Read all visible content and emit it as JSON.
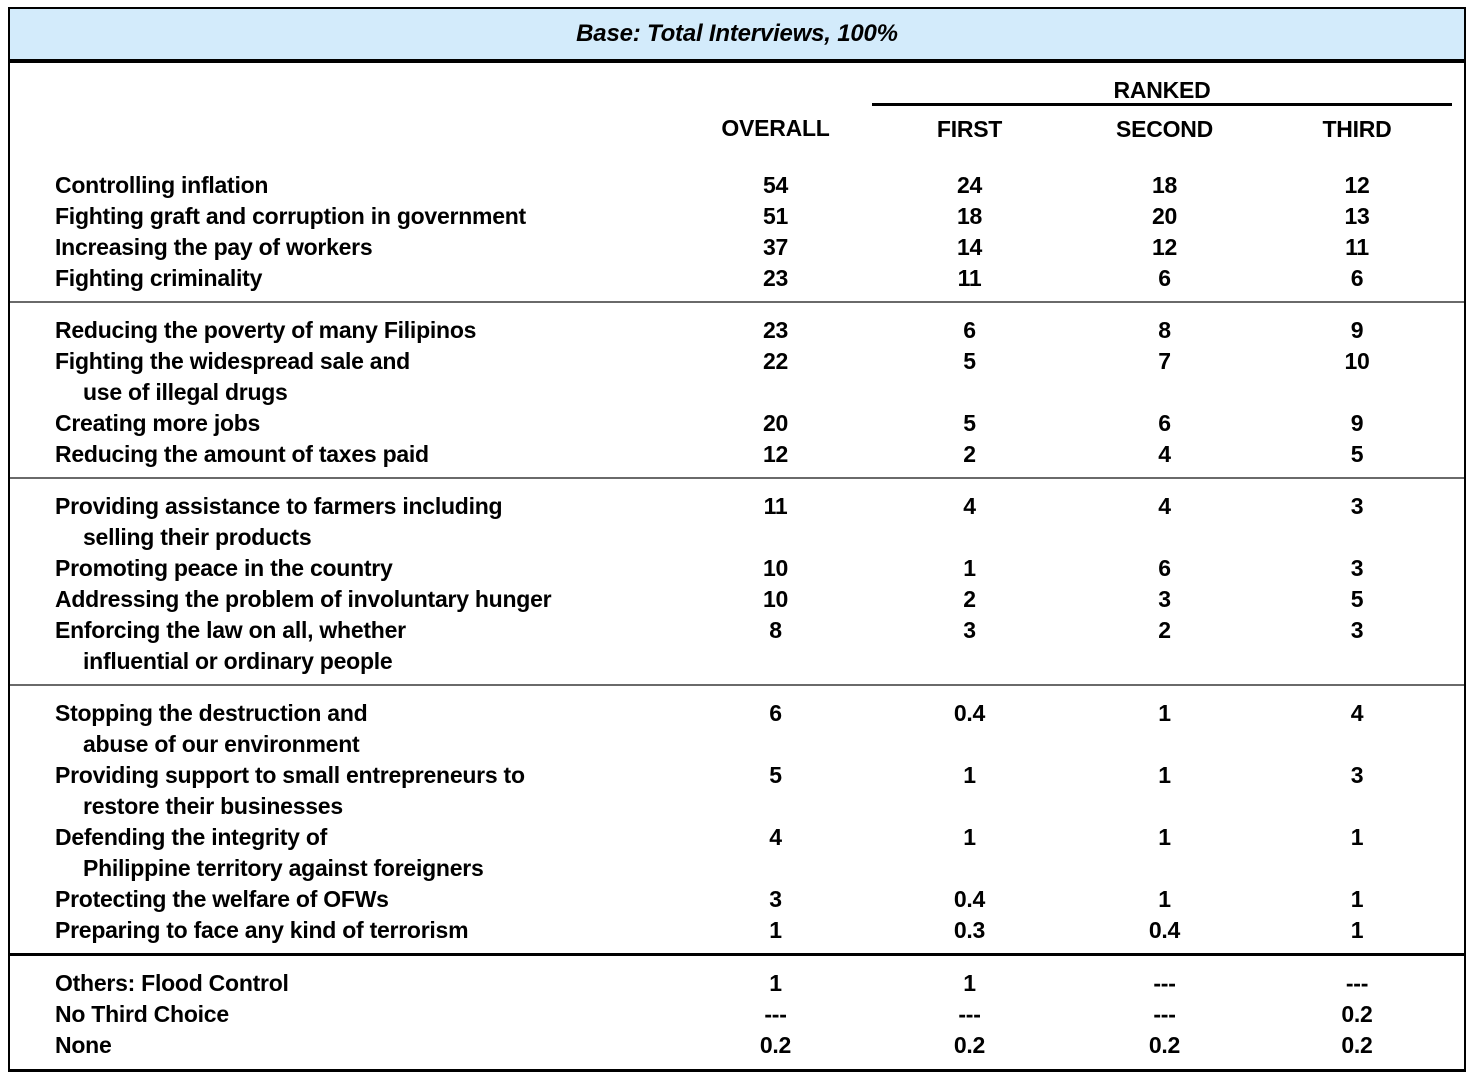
{
  "title_bar": {
    "text": "Base: Total Interviews, 100%"
  },
  "colors": {
    "title_bar_bg": "#d3ebfb",
    "border": "#000000",
    "group_divider": "#6a6a6a",
    "text": "#000000"
  },
  "table": {
    "column_headers": {
      "ranked_group": "RANKED",
      "overall": "OVERALL",
      "first": "FIRST",
      "second": "SECOND",
      "third": "THIRD"
    },
    "groups": [
      {
        "rows": [
          {
            "label_lines": [
              "Controlling inflation"
            ],
            "values": [
              "54",
              "24",
              "18",
              "12"
            ]
          },
          {
            "label_lines": [
              "Fighting graft and corruption in government"
            ],
            "values": [
              "51",
              "18",
              "20",
              "13"
            ]
          },
          {
            "label_lines": [
              "Increasing the pay of workers"
            ],
            "values": [
              "37",
              "14",
              "12",
              "11"
            ]
          },
          {
            "label_lines": [
              "Fighting criminality"
            ],
            "values": [
              "23",
              "11",
              "6",
              "6"
            ]
          }
        ]
      },
      {
        "rows": [
          {
            "label_lines": [
              "Reducing the poverty of many Filipinos"
            ],
            "values": [
              "23",
              "6",
              "8",
              "9"
            ]
          },
          {
            "label_lines": [
              "Fighting the widespread sale and",
              "use of illegal drugs"
            ],
            "values": [
              "22",
              "5",
              "7",
              "10"
            ]
          },
          {
            "label_lines": [
              "Creating more jobs"
            ],
            "values": [
              "20",
              "5",
              "6",
              "9"
            ]
          },
          {
            "label_lines": [
              "Reducing the amount of taxes paid"
            ],
            "values": [
              "12",
              "2",
              "4",
              "5"
            ]
          }
        ]
      },
      {
        "rows": [
          {
            "label_lines": [
              "Providing assistance to farmers including",
              "selling their products"
            ],
            "values": [
              "11",
              "4",
              "4",
              "3"
            ]
          },
          {
            "label_lines": [
              "Promoting peace in the country"
            ],
            "values": [
              "10",
              "1",
              "6",
              "3"
            ]
          },
          {
            "label_lines": [
              "Addressing the problem of involuntary hunger"
            ],
            "values": [
              "10",
              "2",
              "3",
              "5"
            ]
          },
          {
            "label_lines": [
              "Enforcing the law on all, whether",
              "influential or ordinary people"
            ],
            "values": [
              "8",
              "3",
              "2",
              "3"
            ]
          }
        ]
      },
      {
        "rows": [
          {
            "label_lines": [
              "Stopping the destruction and",
              "abuse of our environment"
            ],
            "values": [
              "6",
              "0.4",
              "1",
              "4"
            ]
          },
          {
            "label_lines": [
              "Providing support to small entrepreneurs to",
              "restore their businesses"
            ],
            "values": [
              "5",
              "1",
              "1",
              "3"
            ]
          },
          {
            "label_lines": [
              "Defending the integrity of",
              "Philippine territory against foreigners"
            ],
            "values": [
              "4",
              "1",
              "1",
              "1"
            ]
          },
          {
            "label_lines": [
              "Protecting the welfare of OFWs"
            ],
            "values": [
              "3",
              "0.4",
              "1",
              "1"
            ]
          },
          {
            "label_lines": [
              "Preparing to face any kind of terrorism"
            ],
            "values": [
              "1",
              "0.3",
              "0.4",
              "1"
            ]
          }
        ]
      },
      {
        "thick_rule_above": true,
        "rows": [
          {
            "label_lines": [
              "Others: Flood Control"
            ],
            "values": [
              "1",
              "1",
              "---",
              "---"
            ]
          },
          {
            "label_lines": [
              "No Third Choice"
            ],
            "values": [
              "---",
              "---",
              "---",
              "0.2"
            ]
          },
          {
            "label_lines": [
              "None"
            ],
            "values": [
              "0.2",
              "0.2",
              "0.2",
              "0.2"
            ]
          }
        ]
      }
    ]
  }
}
